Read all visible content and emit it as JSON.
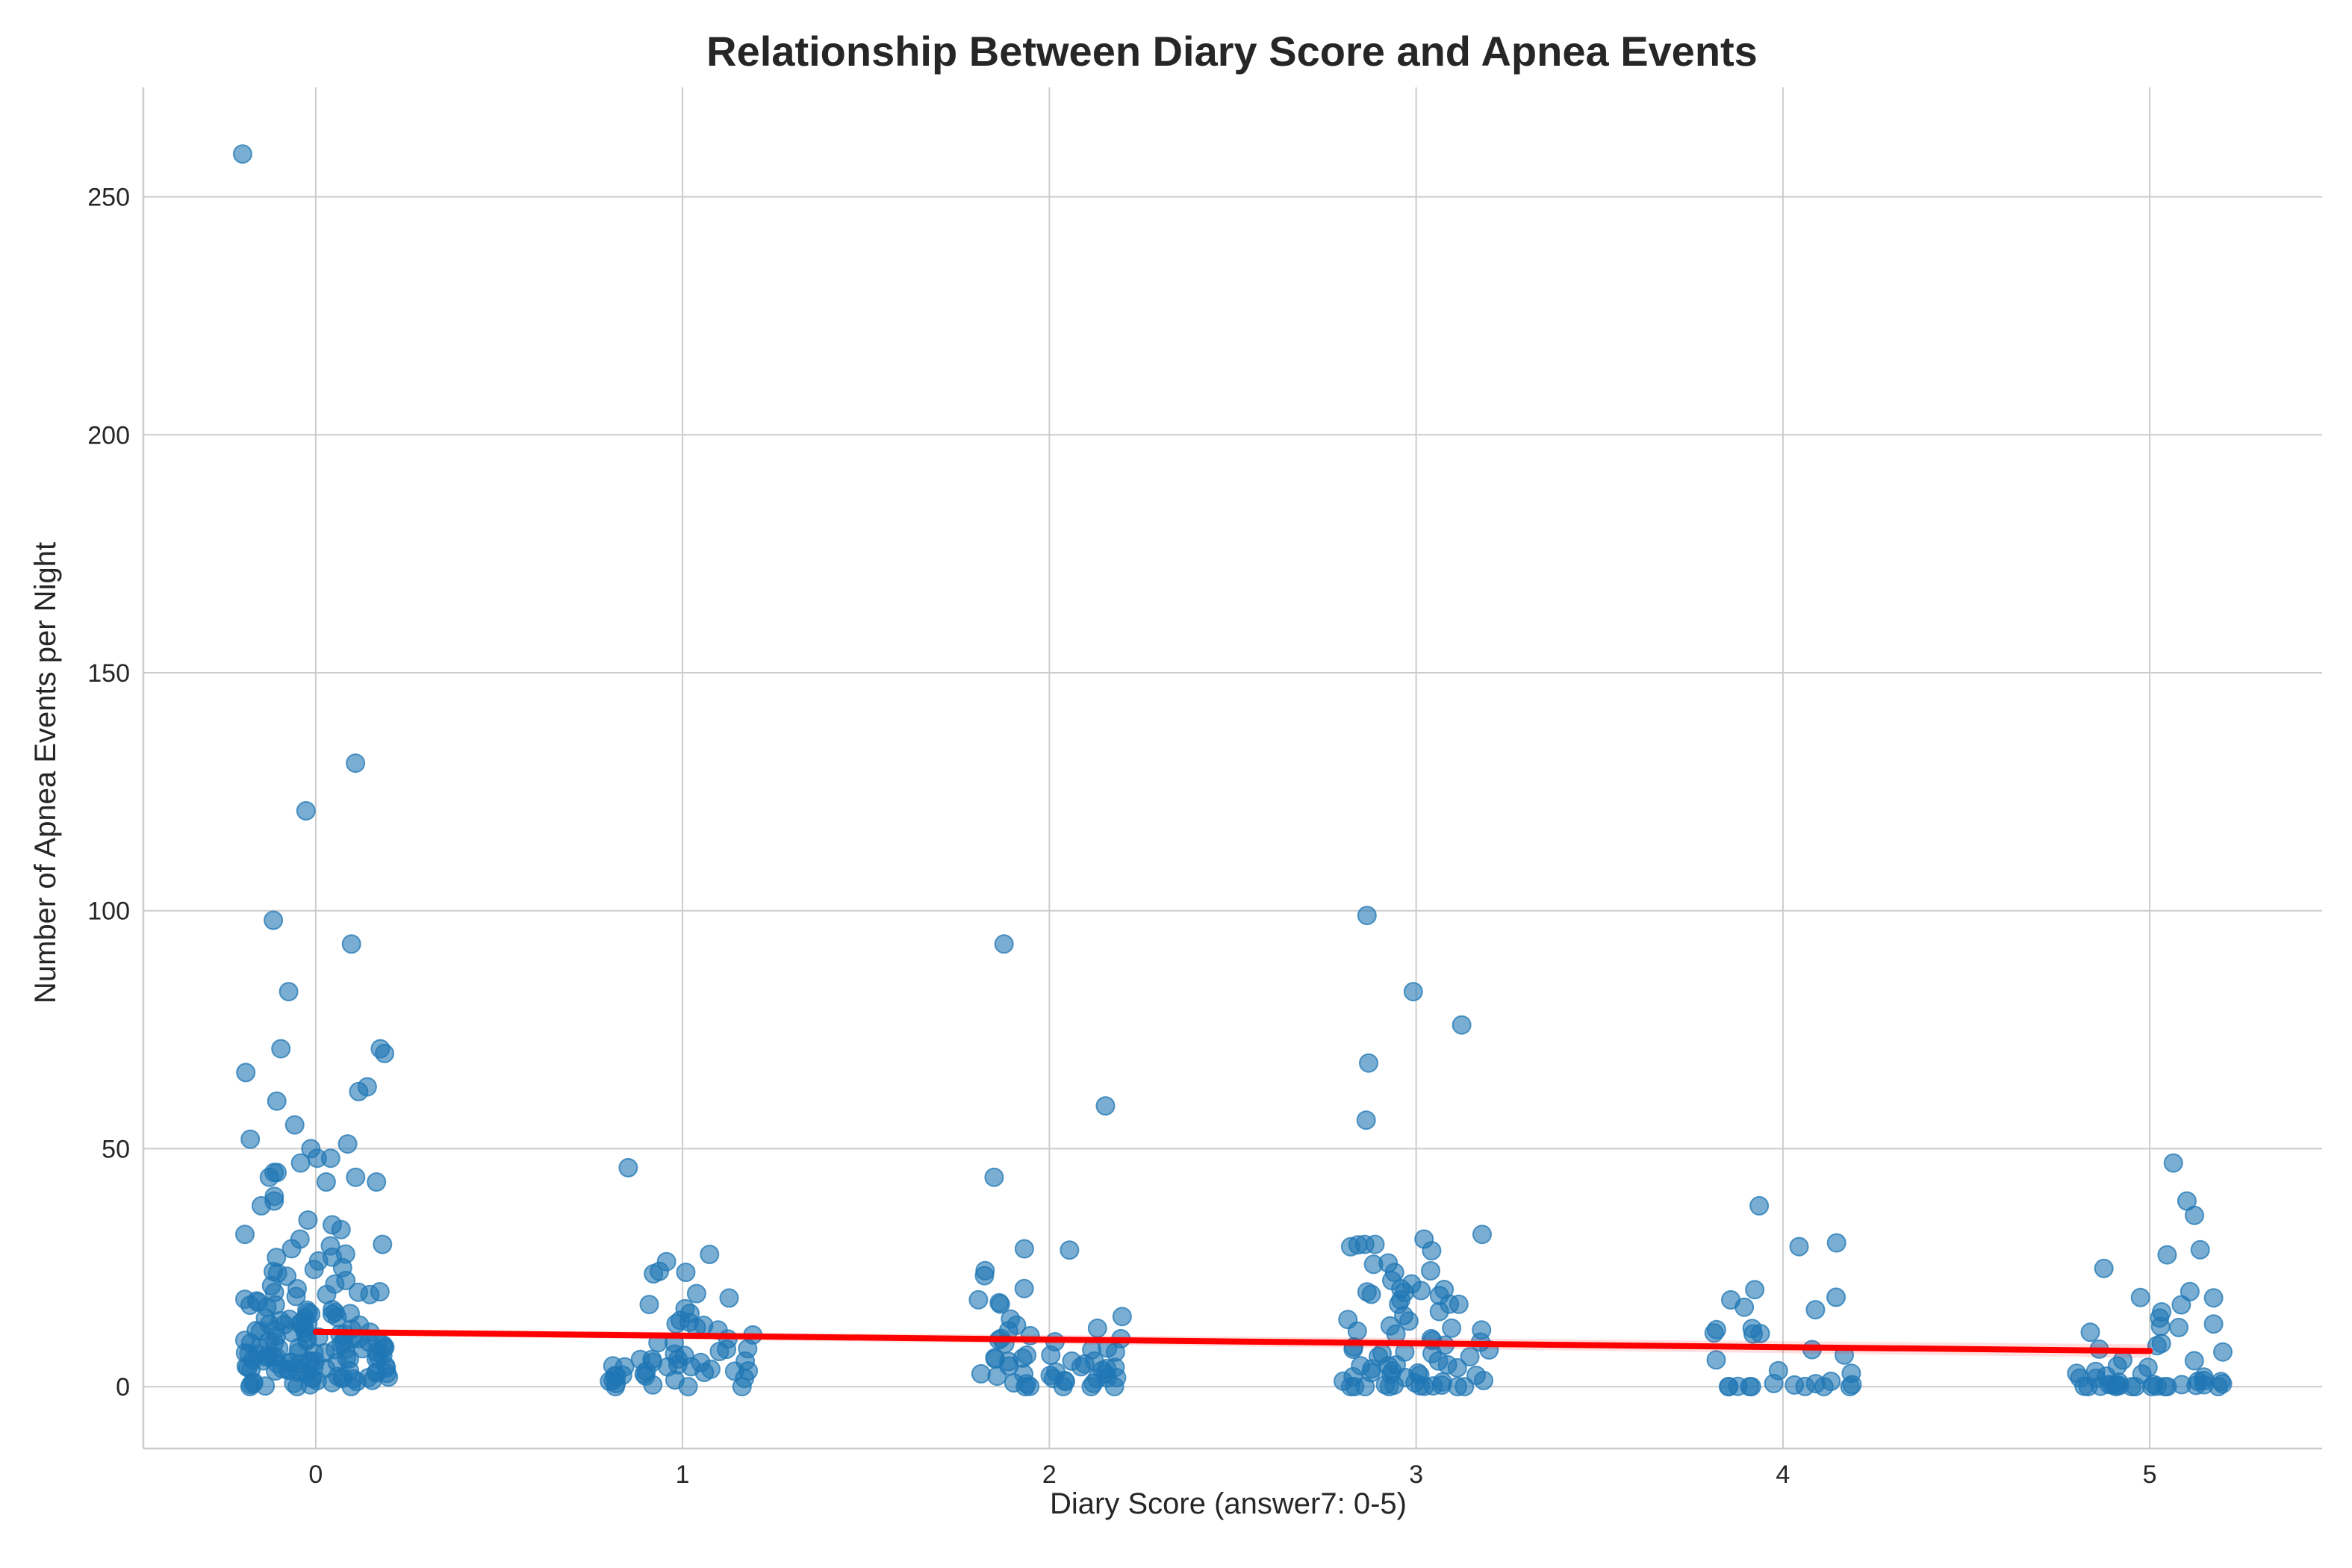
{
  "chart_data": {
    "type": "scatter",
    "title": "Relationship Between Diary Score and Apnea Events",
    "xlabel": "Diary Score (answer7: 0-5)",
    "ylabel": "Number of Apnea Events per Night",
    "xlim": [
      -0.47,
      5.47
    ],
    "ylim": [
      -13,
      273
    ],
    "x_ticks": [
      0,
      1,
      2,
      3,
      4,
      5
    ],
    "y_ticks": [
      0,
      50,
      100,
      150,
      200,
      250
    ],
    "grid": true,
    "jitter": 0.2,
    "point_color": "#1f77b4",
    "trend_color": "#ff0000",
    "trend_line": {
      "x": [
        0,
        5
      ],
      "y": [
        11.5,
        7.5
      ]
    },
    "points": [
      {
        "x": 0,
        "y": [
          259,
          131,
          121,
          98,
          93,
          83,
          71,
          71,
          70,
          66,
          63,
          62,
          60,
          55,
          52,
          51,
          50,
          48,
          48,
          47,
          45,
          45,
          44,
          44,
          43,
          43,
          40,
          39,
          38,
          35,
          34,
          33,
          32,
          31,
          30,
          30,
          29,
          28,
          27,
          27,
          26,
          25,
          25,
          24,
          24,
          23,
          22,
          22,
          21,
          21,
          20,
          20,
          20,
          19,
          19,
          19,
          18,
          18,
          18,
          17,
          17,
          17,
          16,
          16,
          16,
          16,
          15,
          15,
          15,
          15,
          14,
          14,
          14,
          14,
          14,
          13,
          13,
          13,
          13,
          13,
          12,
          12,
          12,
          12,
          12,
          12,
          11,
          11,
          11,
          11,
          11,
          11,
          10,
          10,
          10,
          10,
          10,
          10,
          10,
          9,
          9,
          9,
          9,
          9,
          9,
          9,
          8,
          8,
          8,
          8,
          8,
          8,
          8,
          8,
          7,
          7,
          7,
          7,
          7,
          7,
          7,
          7,
          6,
          6,
          6,
          6,
          6,
          6,
          6,
          6,
          6,
          5,
          5,
          5,
          5,
          5,
          5,
          5,
          5,
          5,
          4,
          4,
          4,
          4,
          4,
          4,
          4,
          4,
          4,
          3,
          3,
          3,
          3,
          3,
          3,
          3,
          3,
          3,
          2,
          2,
          2,
          2,
          2,
          2,
          2,
          2,
          1,
          1,
          1,
          1,
          1,
          1,
          1,
          0,
          0,
          0,
          0,
          0,
          0
        ]
      },
      {
        "x": 1,
        "y": [
          46,
          28,
          26,
          24,
          24,
          24,
          20,
          19,
          17,
          16,
          15,
          14,
          14,
          13,
          13,
          12,
          12,
          11,
          10,
          9,
          9,
          8,
          8,
          7,
          7,
          7,
          6,
          6,
          6,
          5,
          5,
          5,
          5,
          4,
          4,
          4,
          4,
          4,
          3,
          3,
          3,
          3,
          3,
          2,
          2,
          2,
          2,
          2,
          1,
          1,
          1,
          1,
          0,
          0,
          0,
          0
        ]
      },
      {
        "x": 2,
        "y": [
          93,
          59,
          44,
          29,
          29,
          24,
          23,
          21,
          18,
          18,
          17,
          15,
          14,
          13,
          12,
          12,
          11,
          10,
          10,
          10,
          9,
          9,
          8,
          8,
          7,
          7,
          7,
          6,
          6,
          6,
          5,
          5,
          5,
          5,
          4,
          4,
          4,
          4,
          3,
          3,
          3,
          3,
          3,
          2,
          2,
          2,
          2,
          2,
          2,
          1,
          1,
          1,
          1,
          1,
          0,
          0,
          0,
          0,
          0
        ]
      },
      {
        "x": 3,
        "y": [
          99,
          83,
          76,
          68,
          56,
          32,
          31,
          30,
          30,
          30,
          29,
          29,
          26,
          26,
          24,
          24,
          22,
          22,
          21,
          20,
          20,
          20,
          20,
          19,
          19,
          18,
          17,
          17,
          17,
          16,
          15,
          14,
          14,
          13,
          12,
          12,
          12,
          11,
          10,
          10,
          9,
          9,
          8,
          8,
          8,
          7,
          7,
          7,
          6,
          6,
          5,
          5,
          5,
          4,
          4,
          4,
          4,
          3,
          3,
          3,
          3,
          2,
          2,
          2,
          2,
          1,
          1,
          1,
          1,
          0,
          0,
          0,
          0,
          0,
          0,
          0,
          0,
          0,
          0,
          0,
          0
        ]
      },
      {
        "x": 4,
        "y": [
          38,
          30,
          29,
          20,
          19,
          18,
          17,
          16,
          12,
          12,
          11,
          11,
          11,
          8,
          7,
          6,
          3,
          3,
          1,
          1,
          1,
          0,
          0,
          0,
          0,
          0,
          0,
          0,
          0,
          0,
          0
        ]
      },
      {
        "x": 5,
        "y": [
          47,
          39,
          36,
          29,
          28,
          25,
          20,
          19,
          19,
          17,
          16,
          14,
          13,
          13,
          12,
          11,
          9,
          9,
          8,
          7,
          6,
          5,
          4,
          4,
          3,
          3,
          3,
          2,
          2,
          2,
          2,
          1,
          1,
          1,
          1,
          1,
          0,
          0,
          0,
          0,
          0,
          0,
          0,
          0,
          0,
          0,
          0,
          0,
          0,
          0,
          0,
          0,
          0,
          0,
          0
        ]
      }
    ]
  }
}
